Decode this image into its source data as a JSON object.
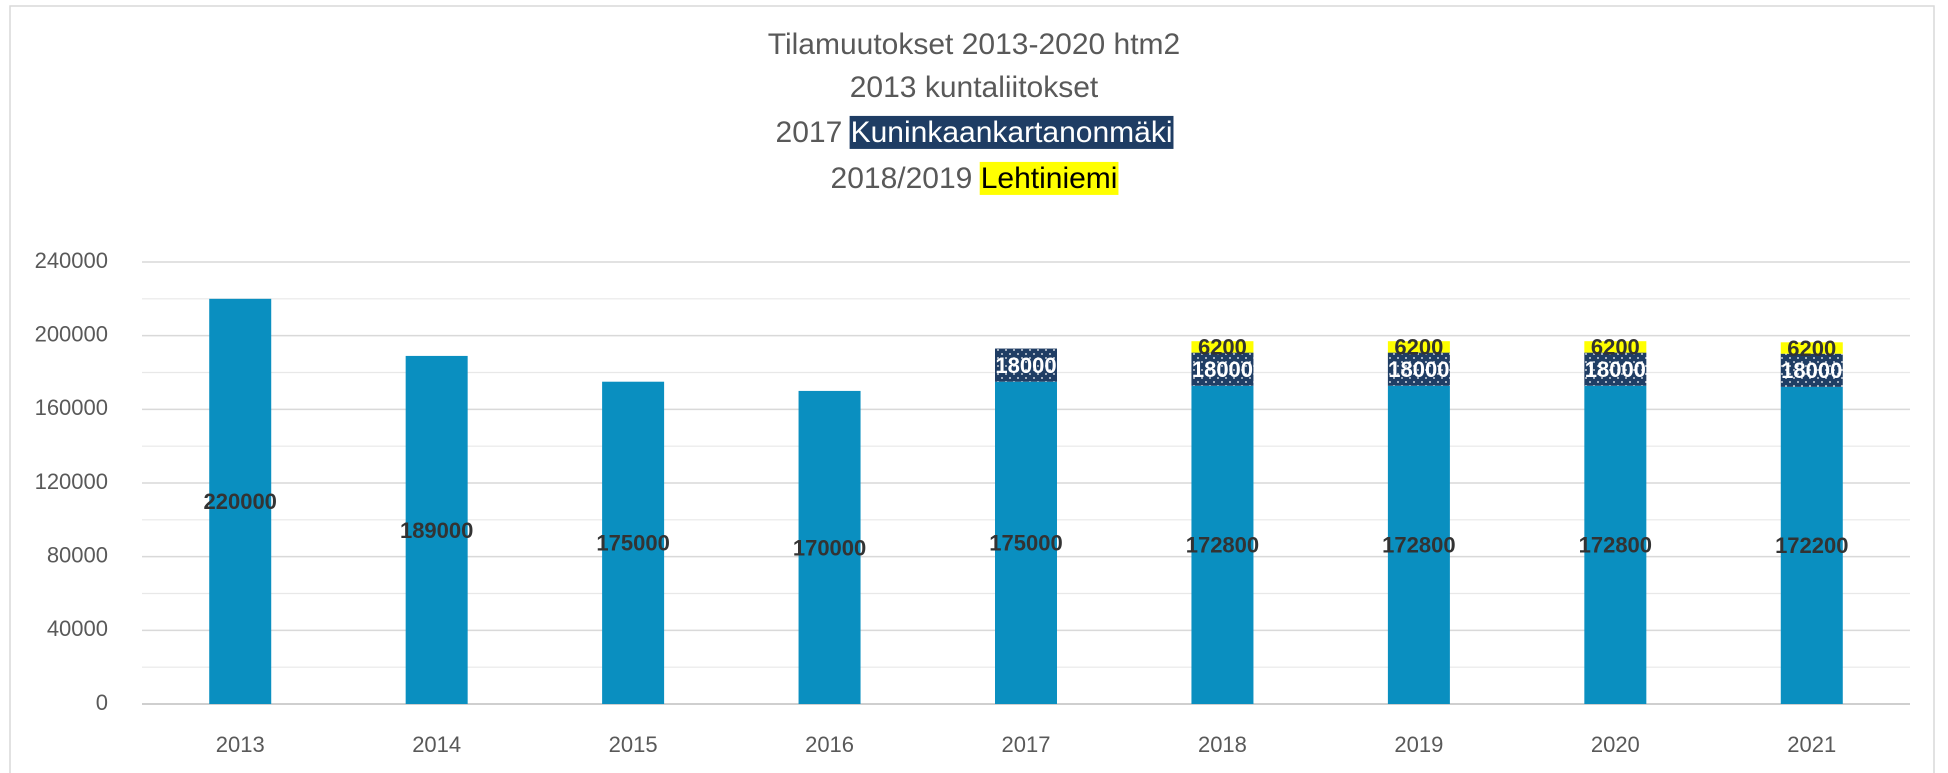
{
  "chart_data": {
    "type": "stacked_bar",
    "title": [
      "Tilamuutokset 2013-2020 htm2",
      "2013 kuntaliitokset",
      "2017",
      "2018/2019"
    ],
    "categories": [
      "2013",
      "2014",
      "2015",
      "2016",
      "2017",
      "2018",
      "2019",
      "2020",
      "2021"
    ],
    "series": [
      {
        "color": "#0a8fc0",
        "values": [
          220000,
          189000,
          175000,
          170000,
          175000,
          172800,
          172800,
          172800,
          172200
        ]
      },
      {
        "name": "Kuninkaankartanonmäki",
        "color": "#1f3d64",
        "values": [
          null,
          null,
          null,
          null,
          18000,
          18000,
          18000,
          18000,
          18000
        ]
      },
      {
        "name": "Lehtiniemi",
        "color": "#ffff00",
        "values": [
          null,
          null,
          null,
          null,
          null,
          6200,
          6200,
          6200,
          6200
        ]
      }
    ],
    "ylim": [
      0,
      240000
    ],
    "yticks": [
      0,
      40000,
      80000,
      120000,
      160000,
      200000,
      240000
    ],
    "minor_yticks": [
      20000,
      60000,
      100000,
      140000,
      180000,
      220000
    ],
    "grid": true
  }
}
